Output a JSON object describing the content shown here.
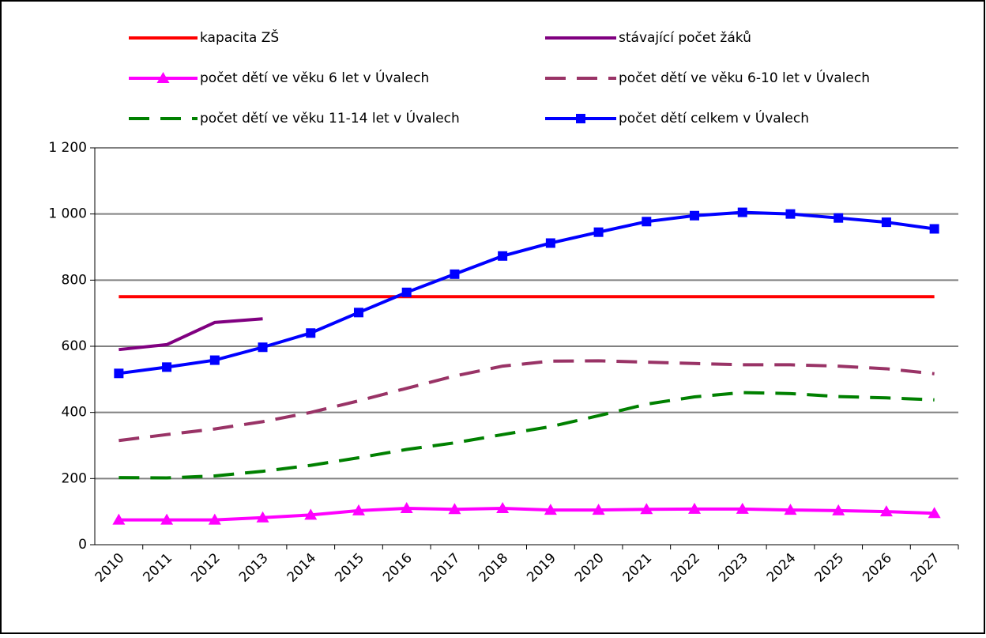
{
  "chart_data": {
    "type": "line",
    "categories": [
      "2010",
      "2011",
      "2012",
      "2013",
      "2014",
      "2015",
      "2016",
      "2017",
      "2018",
      "2019",
      "2020",
      "2021",
      "2022",
      "2023",
      "2024",
      "2025",
      "2026",
      "2027"
    ],
    "series": [
      {
        "name": "kapacita ZŠ",
        "color": "#ff0000",
        "values": [
          750,
          750,
          750,
          750,
          750,
          750,
          750,
          750,
          750,
          750,
          750,
          750,
          750,
          750,
          750,
          750,
          750,
          750
        ]
      },
      {
        "name": "stávající počet žáků",
        "color": "#800080",
        "values": [
          590,
          605,
          672,
          683,
          null,
          null,
          null,
          null,
          null,
          null,
          null,
          null,
          null,
          null,
          null,
          null,
          null,
          null
        ]
      },
      {
        "name": "počet dětí ve věku 6 let v Úvalech",
        "color": "#ff00ff",
        "marker": "triangle",
        "values": [
          75,
          75,
          75,
          82,
          90,
          103,
          110,
          107,
          110,
          105,
          105,
          107,
          108,
          108,
          105,
          103,
          100,
          95
        ]
      },
      {
        "name": "počet dětí ve věku 6-10 let v Úvalech",
        "color": "#993366",
        "dashed": true,
        "values": [
          315,
          333,
          350,
          372,
          400,
          435,
          473,
          510,
          540,
          555,
          556,
          552,
          548,
          544,
          544,
          540,
          532,
          517
        ]
      },
      {
        "name": "počet dětí ve věku 11-14 let v Úvalech",
        "color": "#008000",
        "dashed": true,
        "values": [
          203,
          202,
          208,
          222,
          240,
          263,
          288,
          308,
          333,
          357,
          390,
          425,
          447,
          460,
          457,
          448,
          444,
          438
        ]
      },
      {
        "name": "počet dětí celkem v Úvalech",
        "color": "#0000ff",
        "marker": "square",
        "values": [
          518,
          537,
          558,
          597,
          640,
          702,
          763,
          818,
          873,
          912,
          945,
          977,
          995,
          1005,
          1000,
          988,
          975,
          955
        ]
      }
    ],
    "ylim": [
      0,
      1200
    ],
    "yticks": [
      0,
      200,
      400,
      600,
      800,
      {
        "value": 1000,
        "label": "1 000"
      },
      {
        "value": 1200,
        "label": "1 200"
      }
    ],
    "grid": true
  }
}
